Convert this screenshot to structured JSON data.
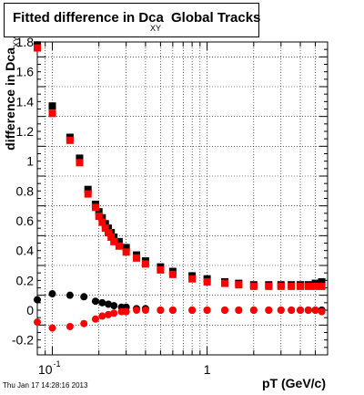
{
  "header": {
    "title_main": "Fitted difference in Dca",
    "title_sub": "XY",
    "title_tail": "Global Tracks"
  },
  "footer": {
    "timestamp": "Thu Jan 17 14:28:16 2013"
  },
  "chart_data": {
    "type": "scatter",
    "title": "Fitted difference in Dca XY Global Tracks",
    "xlabel": "pT (GeV/c)",
    "ylabel": "difference in Dca",
    "ylabel_sub": "XY",
    "xscale": "log",
    "xlim": [
      0.08,
      6.0
    ],
    "ylim": [
      -0.3,
      1.8
    ],
    "grid": true,
    "legend": "none",
    "x_tick_labels": [
      {
        "value": 0.1,
        "base": "10",
        "exp": "-1"
      },
      {
        "value": 1,
        "base": "1",
        "exp": ""
      }
    ],
    "y_ticks": [
      -0.2,
      0,
      0.2,
      0.4,
      0.6,
      0.8,
      1,
      1.2,
      1.4,
      1.6,
      1.8
    ],
    "y_tick_labels": [
      "-0.2",
      "0",
      "0.2",
      "0.4",
      "0.6",
      "0.8",
      "1",
      "1.2",
      "1.4",
      "1.6",
      "1.8"
    ],
    "colors": {
      "black": "#000000",
      "red": "#ff0000"
    },
    "series": [
      {
        "color": "black",
        "marker": "square",
        "x": [
          0.08,
          0.1,
          0.13,
          0.15,
          0.17,
          0.19,
          0.2,
          0.21,
          0.22,
          0.23,
          0.24,
          0.25,
          0.27,
          0.3,
          0.35,
          0.4,
          0.5,
          0.6,
          0.8,
          1.0,
          1.3,
          1.6,
          2.0,
          2.5,
          3.0,
          3.5,
          4.0,
          4.5,
          5.0,
          5.5
        ],
        "y": [
          1.78,
          1.37,
          1.16,
          1.02,
          0.81,
          0.71,
          0.66,
          0.62,
          0.58,
          0.55,
          0.52,
          0.49,
          0.46,
          0.42,
          0.37,
          0.33,
          0.29,
          0.26,
          0.23,
          0.21,
          0.19,
          0.18,
          0.17,
          0.17,
          0.17,
          0.17,
          0.17,
          0.17,
          0.18,
          0.19
        ]
      },
      {
        "color": "red",
        "marker": "square",
        "x": [
          0.08,
          0.1,
          0.13,
          0.15,
          0.17,
          0.19,
          0.2,
          0.21,
          0.22,
          0.23,
          0.24,
          0.25,
          0.27,
          0.3,
          0.35,
          0.4,
          0.5,
          0.6,
          0.8,
          1.0,
          1.3,
          1.6,
          2.0,
          2.5,
          3.0,
          3.5,
          4.0,
          4.5,
          5.0,
          5.5
        ],
        "y": [
          1.76,
          1.32,
          1.14,
          0.99,
          0.78,
          0.69,
          0.63,
          0.59,
          0.55,
          0.52,
          0.49,
          0.46,
          0.43,
          0.39,
          0.35,
          0.31,
          0.27,
          0.24,
          0.21,
          0.19,
          0.18,
          0.17,
          0.16,
          0.16,
          0.16,
          0.16,
          0.16,
          0.16,
          0.16,
          0.16
        ]
      },
      {
        "color": "black",
        "marker": "circle",
        "x": [
          0.08,
          0.1,
          0.13,
          0.16,
          0.19,
          0.21,
          0.23,
          0.25,
          0.28,
          0.3,
          0.35,
          0.4,
          0.5,
          0.6,
          0.8,
          1.0,
          1.3,
          1.6,
          2.0,
          2.5,
          3.0,
          3.5,
          4.0,
          4.5,
          5.0,
          5.5
        ],
        "y": [
          0.07,
          0.11,
          0.1,
          0.09,
          0.06,
          0.05,
          0.04,
          0.03,
          0.02,
          0.02,
          0.01,
          0.01,
          0.0,
          0.0,
          0.0,
          0.0,
          0.0,
          0.0,
          0.0,
          0.0,
          0.0,
          0.0,
          0.0,
          0.0,
          0.0,
          0.0
        ]
      },
      {
        "color": "red",
        "marker": "circle",
        "x": [
          0.08,
          0.1,
          0.13,
          0.16,
          0.19,
          0.21,
          0.23,
          0.25,
          0.28,
          0.3,
          0.35,
          0.4,
          0.5,
          0.6,
          0.8,
          1.0,
          1.3,
          1.6,
          2.0,
          2.5,
          3.0,
          3.5,
          4.0,
          4.5,
          5.0,
          5.5
        ],
        "y": [
          -0.08,
          -0.12,
          -0.11,
          -0.09,
          -0.06,
          -0.04,
          -0.03,
          -0.02,
          -0.01,
          -0.01,
          0.0,
          0.0,
          0.0,
          0.0,
          0.0,
          0.0,
          0.0,
          0.0,
          0.0,
          0.0,
          0.0,
          0.0,
          0.0,
          0.0,
          0.0,
          -0.01
        ]
      }
    ]
  }
}
